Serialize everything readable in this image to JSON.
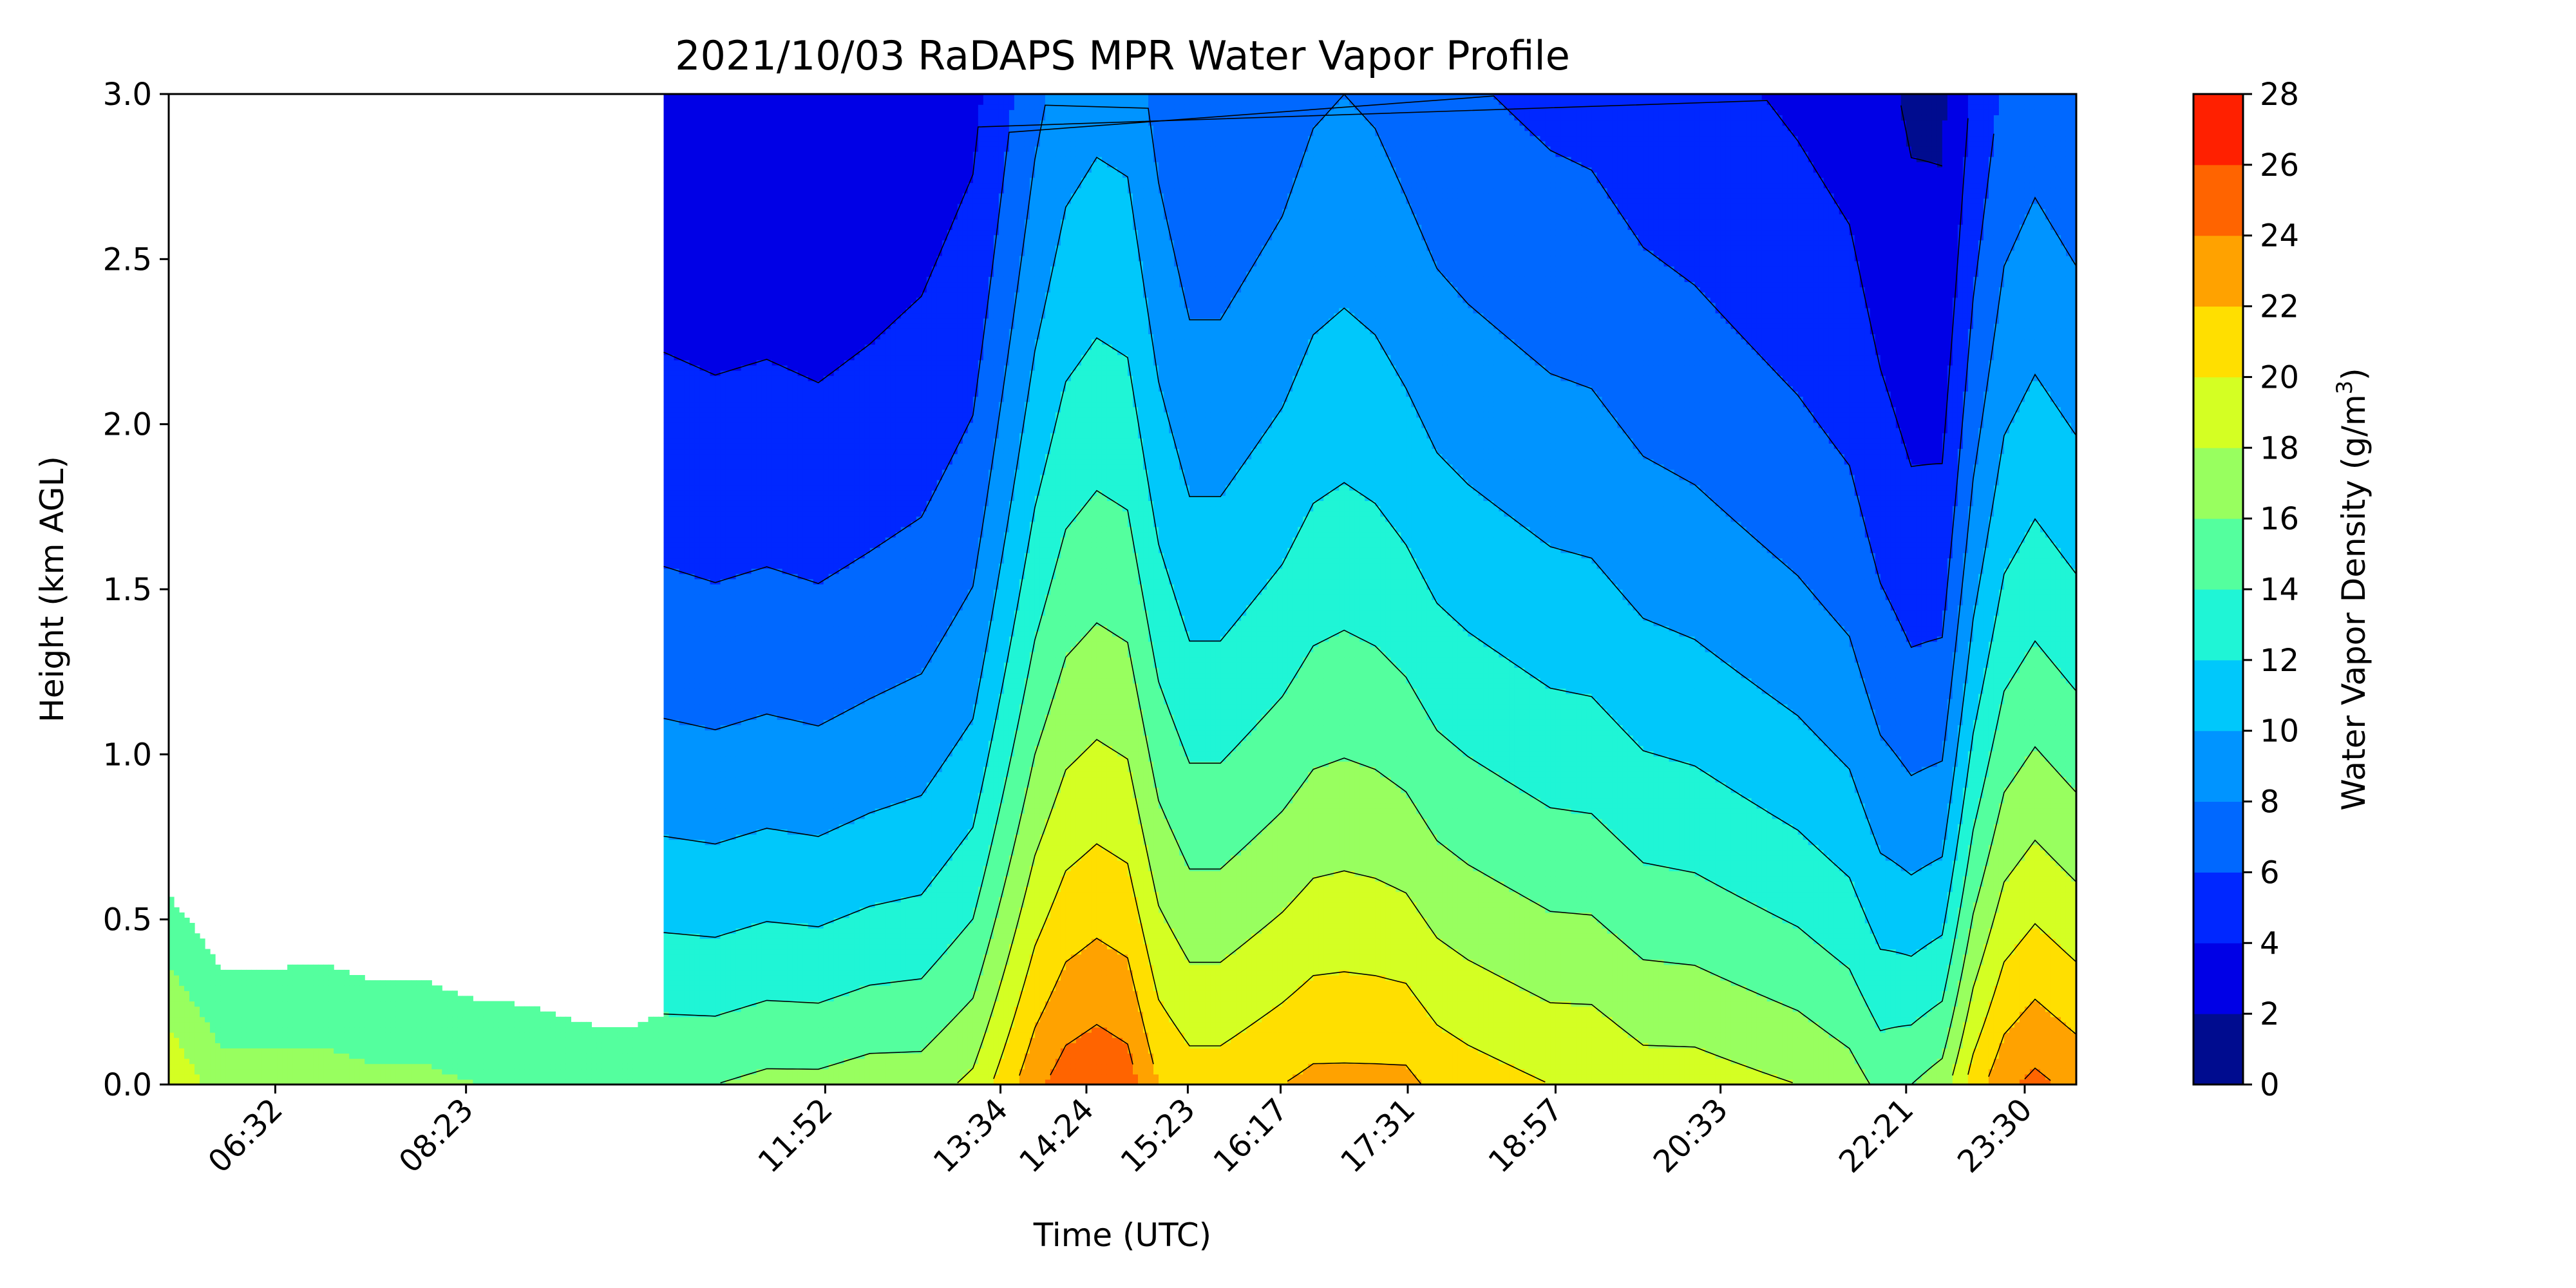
{
  "chart_data": {
    "type": "heatmap",
    "subtype": "filled-contour",
    "title": "2021/10/03 RaDAPS MPR Water Vapor Profile",
    "xlabel": "Time (UTC)",
    "ylabel": "Height (km AGL)",
    "ylim": [
      0.0,
      3.0
    ],
    "x_range_utc": [
      "05:30",
      "00:00"
    ],
    "y_ticks": [
      "0.0",
      "0.5",
      "1.0",
      "1.5",
      "2.0",
      "2.5",
      "3.0"
    ],
    "x_ticks": [
      {
        "label": "06:32",
        "time": "06:32"
      },
      {
        "label": "08:23",
        "time": "08:23"
      },
      {
        "label": "11:52",
        "time": "11:52"
      },
      {
        "label": "13:34",
        "time": "13:34"
      },
      {
        "label": "14:24",
        "time": "14:24"
      },
      {
        "label": "15:23",
        "time": "15:23"
      },
      {
        "label": "16:17",
        "time": "16:17"
      },
      {
        "label": "17:31",
        "time": "17:31"
      },
      {
        "label": "18:57",
        "time": "18:57"
      },
      {
        "label": "20:33",
        "time": "20:33"
      },
      {
        "label": "22:21",
        "time": "22:21"
      },
      {
        "label": "23:30",
        "time": "23:30"
      }
    ],
    "colorbar": {
      "label": "Water Vapor Density (g/m³)",
      "label_main": "Water Vapor Density (g/m",
      "label_sup": "3",
      "label_end": ")",
      "levels": [
        0,
        2,
        4,
        6,
        8,
        10,
        12,
        14,
        16,
        18,
        20,
        22,
        24,
        26,
        28
      ],
      "tick_labels": [
        "0",
        "2",
        "4",
        "6",
        "8",
        "10",
        "12",
        "14",
        "16",
        "18",
        "20",
        "22",
        "24",
        "26",
        "28"
      ],
      "colors": [
        "#000c8f",
        "#0000e6",
        "#0027ff",
        "#0068ff",
        "#0094ff",
        "#00c8fb",
        "#1ff5d6",
        "#54ff9e",
        "#98ff5f",
        "#d4ff23",
        "#ffdf00",
        "#ffa200",
        "#ff6400",
        "#ff2000",
        "#b10000"
      ]
    },
    "profile": {
      "time_hours": [
        5.5,
        6.0,
        6.5,
        7.0,
        7.5,
        8.0,
        8.5,
        9.0,
        9.5,
        10.0,
        10.3,
        10.8,
        11.3,
        11.8,
        12.3,
        12.8,
        13.3,
        13.6,
        13.9,
        14.2,
        14.5,
        14.8,
        15.1,
        15.4,
        15.7,
        16.0,
        16.3,
        16.6,
        16.9,
        17.2,
        17.5,
        17.8,
        18.1,
        18.5,
        18.9,
        19.3,
        19.8,
        20.3,
        20.8,
        21.3,
        21.8,
        22.1,
        22.4,
        22.7,
        23.0,
        23.3,
        23.6,
        24.0
      ],
      "surface_density": [
        20,
        17,
        17,
        17,
        16.5,
        16.5,
        16,
        16,
        15.5,
        15.5,
        16,
        16,
        16.5,
        16.5,
        17,
        17,
        18.5,
        21,
        23.5,
        25,
        25.5,
        25,
        22,
        21,
        21,
        21.5,
        22,
        22.5,
        22.5,
        22.5,
        22.5,
        21.5,
        21,
        20.5,
        20,
        20,
        19,
        19,
        18.5,
        18,
        17,
        15.5,
        16,
        17,
        21,
        23.5,
        24.5,
        23.5
      ],
      "scale_height_km": [
        1.6,
        1.8,
        1.8,
        1.9,
        1.9,
        1.9,
        1.9,
        1.8,
        1.8,
        1.7,
        1.6,
        1.55,
        1.55,
        1.5,
        1.55,
        1.65,
        1.8,
        2.2,
        2.6,
        2.9,
        3.0,
        3.0,
        2.7,
        2.4,
        2.4,
        2.5,
        2.6,
        2.8,
        2.9,
        2.8,
        2.6,
        2.5,
        2.45,
        2.4,
        2.35,
        2.3,
        2.2,
        2.1,
        2.0,
        1.9,
        1.8,
        1.6,
        1.35,
        1.3,
        1.9,
        2.3,
        2.4,
        2.3
      ],
      "missing_data_hours": [
        [
          5.5,
          10.3
        ]
      ]
    }
  }
}
